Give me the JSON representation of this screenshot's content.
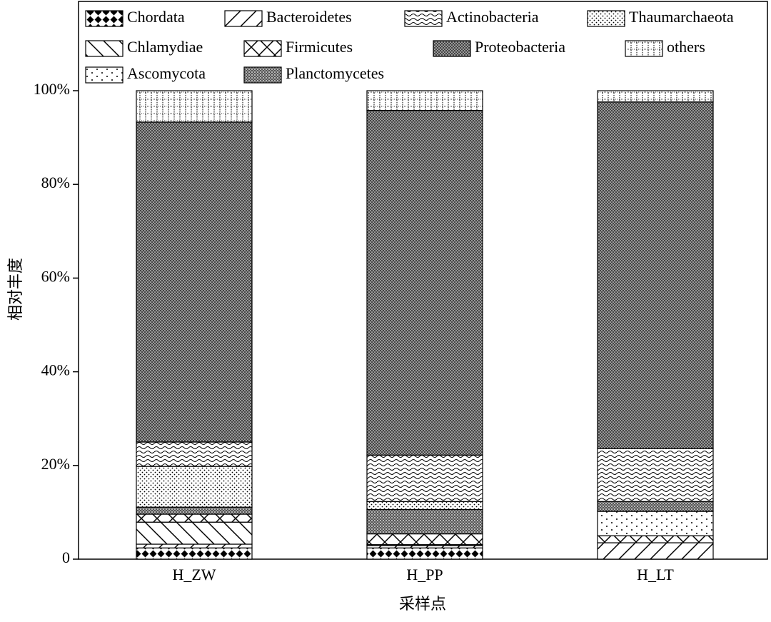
{
  "chart_data": {
    "type": "stacked_bar",
    "xlabel": "采样点",
    "ylabel": "相对丰度",
    "categories": [
      "H_ZW",
      "H_PP",
      "H_LT"
    ],
    "ylim": [
      0,
      100
    ],
    "yticks": [
      0,
      {
        "value": 20,
        "label": "20%"
      },
      {
        "value": 40,
        "label": "40%"
      },
      {
        "value": 60,
        "label": "60%"
      },
      {
        "value": 80,
        "label": "80%"
      },
      {
        "value": 100,
        "label": "100%"
      }
    ],
    "series": [
      {
        "name": "Chordata",
        "pattern": "chordata",
        "values": [
          2.4,
          2.4,
          0
        ]
      },
      {
        "name": "Bacteroidetes",
        "pattern": "fwd",
        "values": [
          0.8,
          0.5,
          3.5
        ]
      },
      {
        "name": "Chlamydiae",
        "pattern": "back",
        "values": [
          4.7,
          0.2,
          0
        ]
      },
      {
        "name": "Firmicutes",
        "pattern": "cross",
        "values": [
          1.7,
          2.3,
          1.5
        ]
      },
      {
        "name": "Ascomycota",
        "pattern": "sparse",
        "values": [
          0,
          0,
          5.2
        ]
      },
      {
        "name": "Planctomycetes",
        "pattern": "plancto",
        "values": [
          1.5,
          5.2,
          2.1
        ]
      },
      {
        "name": "Thaumarchaeota",
        "pattern": "dots",
        "values": [
          8.7,
          1.7,
          0
        ]
      },
      {
        "name": "Actinobacteria",
        "pattern": "wave",
        "values": [
          5.2,
          9.9,
          11.3
        ]
      },
      {
        "name": "Proteobacteria",
        "pattern": "proteo",
        "values": [
          68.3,
          73.6,
          74.0
        ]
      },
      {
        "name": "others",
        "pattern": "grid",
        "values": [
          6.7,
          4.2,
          2.4
        ]
      }
    ]
  }
}
